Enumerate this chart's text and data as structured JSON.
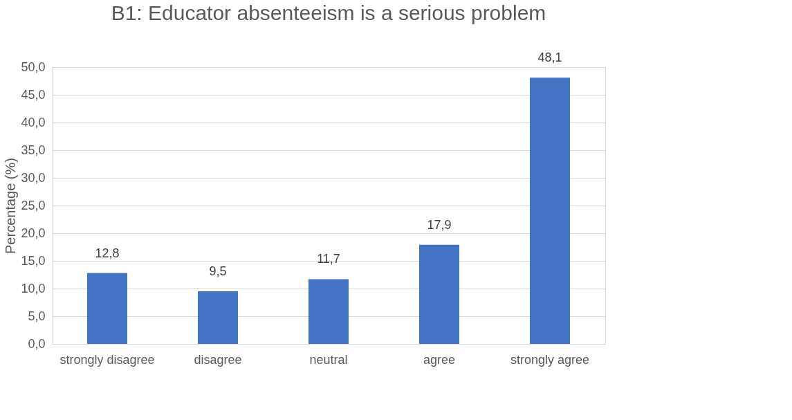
{
  "chart_data": {
    "type": "bar",
    "title": "B1: Educator absenteeism is a serious problem",
    "ylabel": "Percentage (%)",
    "categories": [
      "strongly disagree",
      "disagree",
      "neutral",
      "agree",
      "strongly agree"
    ],
    "values": [
      12.8,
      9.5,
      11.7,
      17.9,
      48.1
    ],
    "value_labels": [
      "12,8",
      "9,5",
      "11,7",
      "17,9",
      "48,1"
    ],
    "color": "#4472c4",
    "ylim": [
      0,
      50
    ],
    "yticks": [
      {
        "value": 0,
        "label": "0,0"
      },
      {
        "value": 5,
        "label": "5,0"
      },
      {
        "value": 10,
        "label": "10,0"
      },
      {
        "value": 15,
        "label": "15,0"
      },
      {
        "value": 20,
        "label": "20,0"
      },
      {
        "value": 25,
        "label": "25,0"
      },
      {
        "value": 30,
        "label": "30,0"
      },
      {
        "value": 35,
        "label": "35,0"
      },
      {
        "value": 40,
        "label": "40,0"
      },
      {
        "value": 45,
        "label": "45,0"
      },
      {
        "value": 50,
        "label": "50,0"
      }
    ],
    "grid": true
  }
}
